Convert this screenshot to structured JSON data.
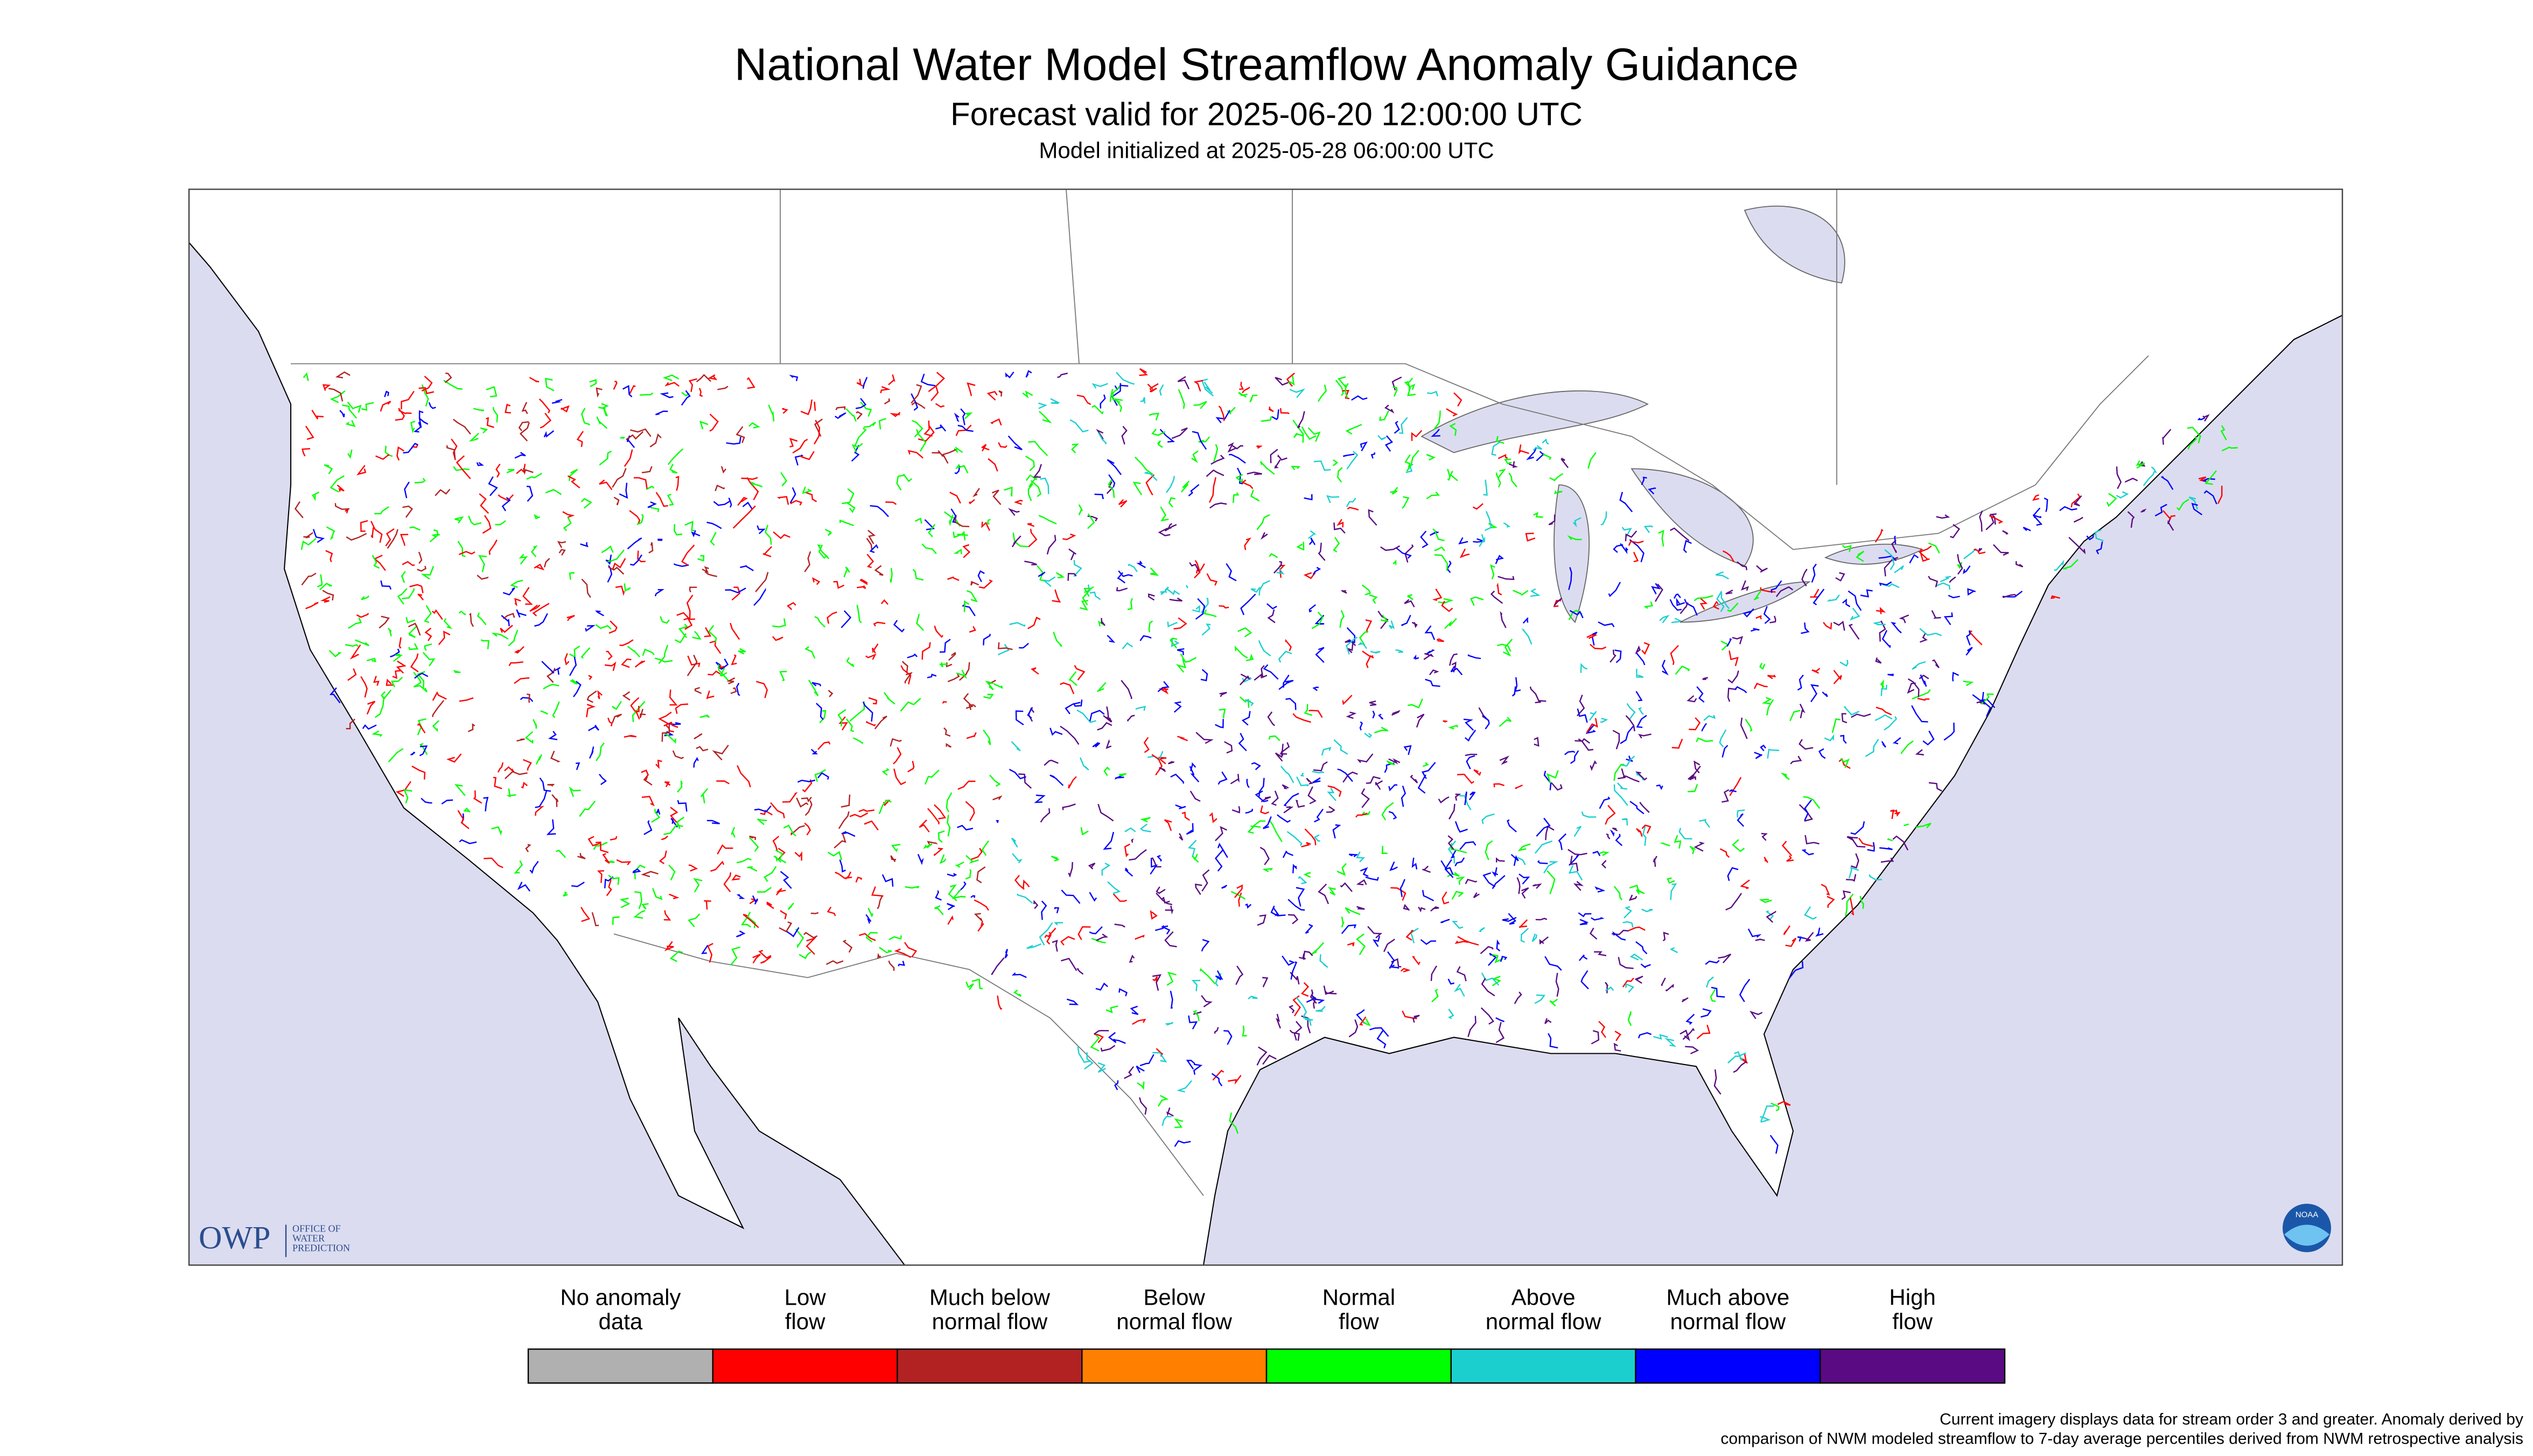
{
  "header": {
    "title": "National Water Model Streamflow Anomaly Guidance",
    "subtitle": "Forecast valid for 2025-06-20 12:00:00 UTC",
    "initialized": "Model initialized at 2025-05-28 06:00:00 UTC"
  },
  "legend": {
    "items": [
      {
        "label": [
          "No anomaly",
          "data"
        ],
        "color": "#b0b0b0"
      },
      {
        "label": [
          "Low",
          "flow"
        ],
        "color": "#ff0000"
      },
      {
        "label": [
          "Much below",
          "normal flow"
        ],
        "color": "#b22222"
      },
      {
        "label": [
          "Below",
          "normal flow"
        ],
        "color": "#ff7f00"
      },
      {
        "label": [
          "Normal",
          "flow"
        ],
        "color": "#00ff00"
      },
      {
        "label": [
          "Above",
          "normal flow"
        ],
        "color": "#1ccfcf"
      },
      {
        "label": [
          "Much above",
          "normal flow"
        ],
        "color": "#0000ff"
      },
      {
        "label": [
          "High",
          "flow"
        ],
        "color": "#5a0a82"
      }
    ]
  },
  "footnote": [
    "Current imagery displays data for stream order 3 and greater. Anomaly derived by",
    "comparison of NWM modeled streamflow to 7-day average percentiles derived from NWM retrospective analysis"
  ],
  "logos": {
    "owp": "OWP",
    "owp_sub": [
      "OFFICE OF",
      "WATER",
      "PREDICTION"
    ],
    "noaa": "NOAA"
  }
}
